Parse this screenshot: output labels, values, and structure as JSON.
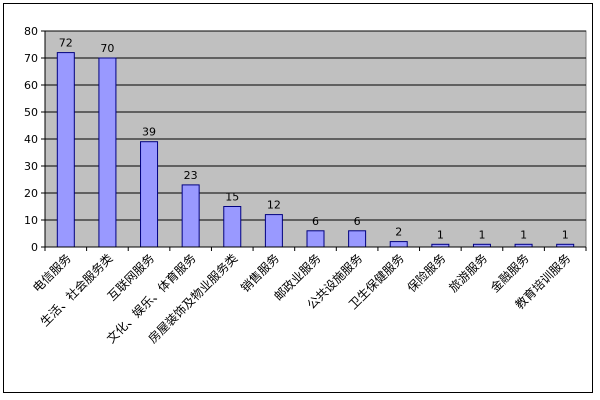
{
  "chart_data": {
    "type": "bar",
    "title": "",
    "xlabel": "",
    "ylabel": "",
    "categories": [
      "电信服务",
      "生活、社会服务类",
      "互联网服务",
      "文化、娱乐、体育服务",
      "房屋装饰及物业服务类",
      "销售服务",
      "邮政业服务",
      "公共设施服务",
      "卫生保健服务",
      "保险服务",
      "旅游服务",
      "金融服务",
      "教育培训服务"
    ],
    "values": [
      72,
      70,
      39,
      23,
      15,
      12,
      6,
      6,
      2,
      1,
      1,
      1,
      1
    ],
    "ylim": [
      0,
      80
    ],
    "yticks": [
      0,
      10,
      20,
      30,
      40,
      50,
      60,
      70,
      80
    ],
    "grid": true,
    "legend": "none",
    "colors": {
      "bar_fill": "#9999ff",
      "bar_stroke": "#000080",
      "plot_background": "#c0c0c0",
      "gridline": "#000000"
    }
  }
}
